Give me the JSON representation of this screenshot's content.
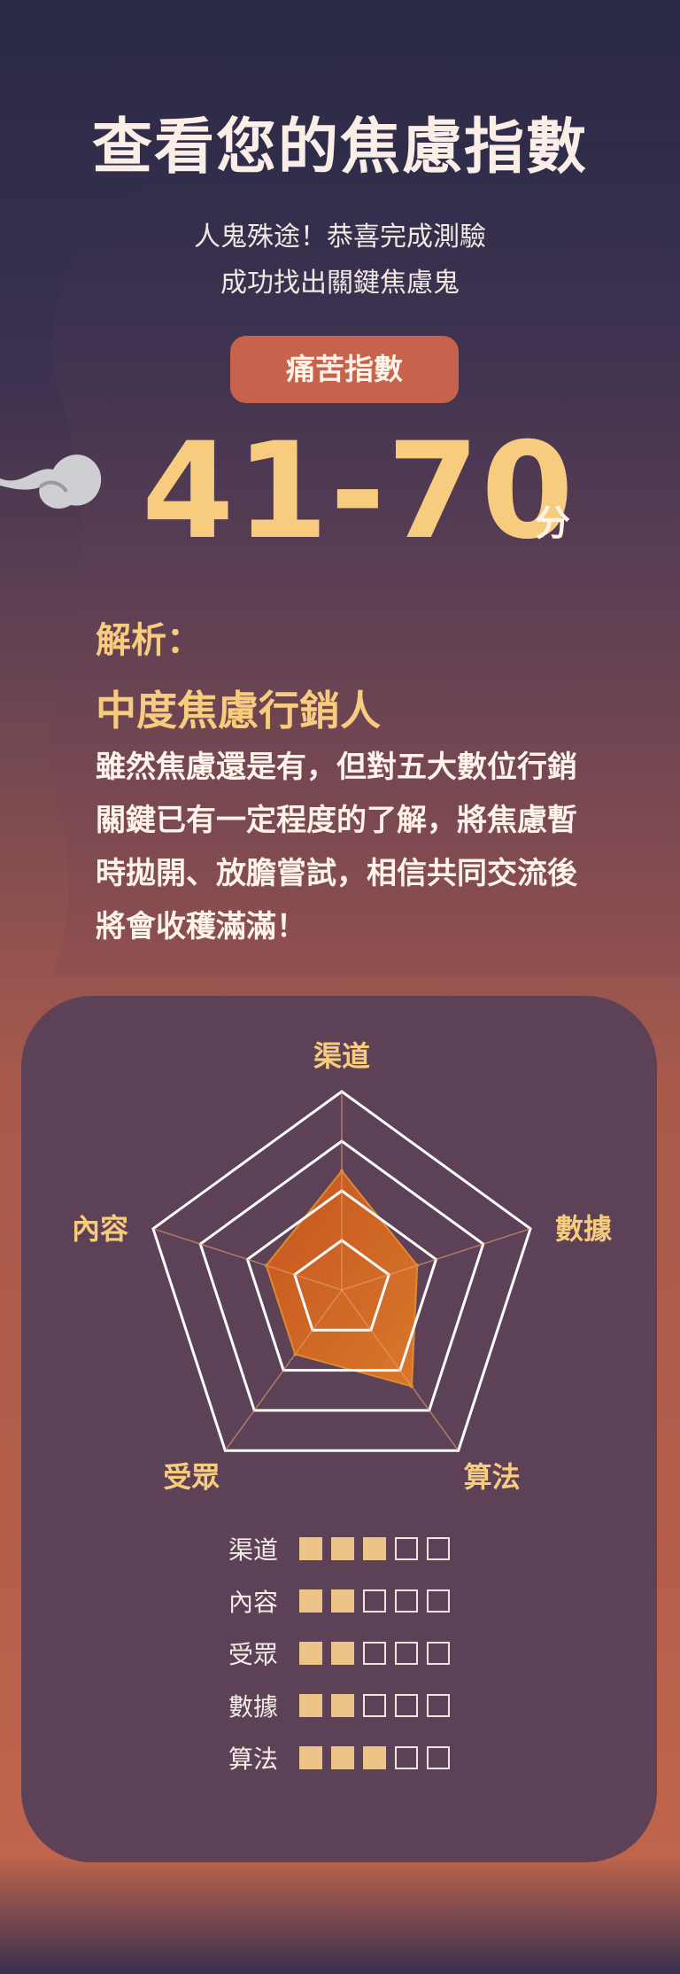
{
  "header": {
    "title": "查看您的焦慮指數",
    "subtitle_line1": "人鬼殊途！恭喜完成測驗",
    "subtitle_line2": "成功找出關鍵焦慮鬼"
  },
  "score": {
    "badge": "痛苦指數",
    "range": "41-70",
    "unit": "分"
  },
  "analysis": {
    "label": "解析：",
    "title": "中度焦慮行銷人",
    "description": "雖然焦慮還是有，但對五大數位行銷關鍵已有一定程度的了解，將焦慮暫時拋開、放膽嘗試，相信共同交流後將會收穫滿滿！"
  },
  "chart_data": {
    "type": "radar",
    "axes": [
      "渠道",
      "數據",
      "算法",
      "受眾",
      "內容"
    ],
    "max": 5,
    "rings": 4,
    "values": [
      3,
      2,
      3,
      2,
      2
    ],
    "fill_color": "#d9772b",
    "grid_color": "#ffffff",
    "label_color": "#f8cc7e"
  },
  "score_table": {
    "max": 5,
    "rows": [
      {
        "label": "渠道",
        "value": 3
      },
      {
        "label": "內容",
        "value": 2
      },
      {
        "label": "受眾",
        "value": 2
      },
      {
        "label": "數據",
        "value": 2
      },
      {
        "label": "算法",
        "value": 3
      }
    ]
  }
}
